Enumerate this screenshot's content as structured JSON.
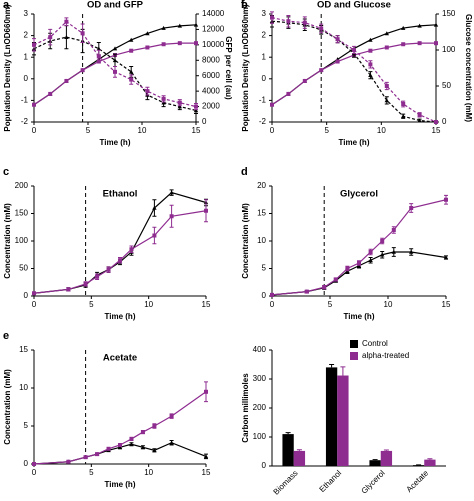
{
  "chart_data": [
    {
      "label": "a",
      "type": "line",
      "title": "OD and GFP",
      "xlabel": "Time (h)",
      "ylabel": "Population Density (LnOD660nm)",
      "y2label": "GFP per cell (au)",
      "x": [
        0,
        1.5,
        3,
        4.5,
        6,
        7.5,
        9,
        10.5,
        12,
        13.5,
        15
      ],
      "xlim": [
        0,
        15
      ],
      "xticks": [
        0,
        5,
        10,
        15
      ],
      "ylim": [
        -2,
        3
      ],
      "yticks": [
        -2,
        -1,
        0,
        1,
        2,
        3
      ],
      "y2lim": [
        0,
        14000
      ],
      "y2ticks": [
        0,
        2000,
        4000,
        6000,
        8000,
        10000,
        12000,
        14000
      ],
      "vline": 4.5,
      "series": [
        {
          "color": "#000000",
          "marker": "triangle",
          "dash": false,
          "values": [
            -1.2,
            -0.7,
            -0.1,
            0.4,
            0.9,
            1.4,
            1.8,
            2.1,
            2.35,
            2.45,
            2.5
          ]
        },
        {
          "color": "#8e2c90",
          "marker": "square",
          "dash": false,
          "values": [
            -1.2,
            -0.7,
            -0.1,
            0.4,
            0.8,
            1.1,
            1.3,
            1.45,
            1.6,
            1.65,
            1.65
          ]
        },
        {
          "color": "#000000",
          "marker": "triangle",
          "dash": true,
          "axis": "y2",
          "values": [
            9500,
            10500,
            11000,
            10500,
            9500,
            8000,
            6500,
            3500,
            2500,
            2000,
            1500
          ],
          "errors": [
            800,
            1000,
            1500,
            1500,
            800,
            800,
            700,
            600,
            500,
            400,
            400
          ]
        },
        {
          "color": "#8e2c90",
          "marker": "square",
          "dash": true,
          "axis": "y2",
          "values": [
            10000,
            11000,
            13000,
            11500,
            8500,
            6500,
            5500,
            4000,
            3000,
            2500,
            2000
          ],
          "errors": [
            800,
            1000,
            500,
            1200,
            800,
            700,
            600,
            500,
            400,
            400,
            400
          ]
        }
      ]
    },
    {
      "label": "b",
      "type": "line",
      "title": "OD and Glucose",
      "xlabel": "Time (h)",
      "ylabel": "Population Density (LnOD660nm)",
      "y2label": "Glucose concentration (mM)",
      "x": [
        0,
        1.5,
        3,
        4.5,
        6,
        7.5,
        9,
        10.5,
        12,
        13.5,
        15
      ],
      "xlim": [
        0,
        15
      ],
      "xticks": [
        0,
        5,
        10,
        15
      ],
      "ylim": [
        -2,
        3
      ],
      "yticks": [
        -2,
        -1,
        0,
        1,
        2,
        3
      ],
      "y2lim": [
        0,
        150
      ],
      "y2ticks": [
        0,
        50,
        100,
        150
      ],
      "vline": 4.5,
      "series": [
        {
          "color": "#000000",
          "marker": "triangle",
          "dash": false,
          "values": [
            -1.2,
            -0.7,
            -0.1,
            0.4,
            0.9,
            1.4,
            1.8,
            2.1,
            2.35,
            2.45,
            2.5
          ]
        },
        {
          "color": "#8e2c90",
          "marker": "square",
          "dash": false,
          "values": [
            -1.2,
            -0.7,
            -0.1,
            0.4,
            0.8,
            1.1,
            1.3,
            1.45,
            1.6,
            1.65,
            1.65
          ]
        },
        {
          "color": "#000000",
          "marker": "triangle",
          "dash": true,
          "axis": "y2",
          "values": [
            140,
            138,
            135,
            128,
            115,
            95,
            65,
            30,
            8,
            2,
            0
          ],
          "errors": [
            8,
            8,
            8,
            6,
            5,
            5,
            5,
            5,
            3,
            2,
            1
          ]
        },
        {
          "color": "#8e2c90",
          "marker": "square",
          "dash": true,
          "axis": "y2",
          "values": [
            145,
            140,
            138,
            130,
            115,
            100,
            80,
            50,
            25,
            10,
            0
          ],
          "errors": [
            8,
            8,
            8,
            6,
            5,
            5,
            5,
            5,
            4,
            3,
            1
          ]
        }
      ]
    },
    {
      "label": "c",
      "type": "line",
      "title": "Ethanol",
      "xlabel": "Time (h)",
      "ylabel": "Concentration (mM)",
      "x": [
        0,
        3,
        4.5,
        5.5,
        6.5,
        7.5,
        8.5,
        10.5,
        12,
        15
      ],
      "xlim": [
        0,
        15
      ],
      "xticks": [
        0,
        5,
        10,
        15
      ],
      "ylim": [
        0,
        200
      ],
      "yticks": [
        0,
        50,
        100,
        150,
        200
      ],
      "vline": 4.5,
      "series": [
        {
          "color": "#000000",
          "marker": "triangle",
          "dash": false,
          "values": [
            5,
            12,
            20,
            38,
            48,
            62,
            80,
            160,
            188,
            170
          ],
          "errors": [
            2,
            3,
            4,
            5,
            5,
            5,
            6,
            15,
            5,
            6
          ]
        },
        {
          "color": "#8e2c90",
          "marker": "square",
          "dash": false,
          "values": [
            5,
            12,
            22,
            35,
            48,
            65,
            85,
            110,
            145,
            155
          ],
          "errors": [
            2,
            3,
            4,
            5,
            5,
            5,
            6,
            15,
            20,
            20
          ]
        }
      ]
    },
    {
      "label": "d",
      "type": "line",
      "title": "Glycerol",
      "xlabel": "Time (h)",
      "ylabel": "Concentration (mM)",
      "x": [
        0,
        3,
        4.5,
        5.5,
        6.5,
        7.5,
        8.5,
        9.5,
        10.5,
        12,
        15
      ],
      "xlim": [
        0,
        15
      ],
      "xticks": [
        0,
        5,
        10,
        15
      ],
      "ylim": [
        0,
        20
      ],
      "yticks": [
        0,
        5,
        10,
        15,
        20
      ],
      "vline": 4.5,
      "series": [
        {
          "color": "#000000",
          "marker": "triangle",
          "dash": false,
          "values": [
            0.2,
            0.8,
            1.5,
            2.8,
            4.5,
            5.5,
            6.5,
            7.5,
            8,
            8,
            7
          ],
          "errors": [
            0.1,
            0.2,
            0.3,
            0.3,
            0.4,
            0.4,
            0.5,
            0.6,
            0.8,
            0.6,
            0.3
          ]
        },
        {
          "color": "#8e2c90",
          "marker": "square",
          "dash": false,
          "values": [
            0.2,
            0.8,
            1.6,
            3,
            5,
            6,
            8,
            10,
            12,
            16,
            17.5
          ],
          "errors": [
            0.1,
            0.2,
            0.3,
            0.3,
            0.4,
            0.4,
            0.5,
            0.5,
            0.6,
            0.8,
            0.8
          ]
        }
      ]
    },
    {
      "label": "e",
      "type": "line",
      "title": "Acetate",
      "xlabel": "Time (h)",
      "ylabel": "Concentration (mM)",
      "x": [
        0,
        3,
        4.5,
        5.5,
        6.5,
        7.5,
        8.5,
        9.5,
        10.5,
        12,
        15
      ],
      "xlim": [
        0,
        15
      ],
      "xticks": [
        0,
        5,
        10,
        15
      ],
      "ylim": [
        0,
        15
      ],
      "yticks": [
        0,
        5,
        10,
        15
      ],
      "vline": 4.5,
      "series": [
        {
          "color": "#000000",
          "marker": "triangle",
          "dash": false,
          "values": [
            0,
            0.3,
            0.9,
            1.3,
            1.8,
            2.2,
            2.6,
            2.2,
            1.8,
            2.8,
            1
          ],
          "errors": [
            0.05,
            0.1,
            0.1,
            0.1,
            0.1,
            0.2,
            0.2,
            0.2,
            0.2,
            0.3,
            0.3
          ]
        },
        {
          "color": "#8e2c90",
          "marker": "square",
          "dash": false,
          "values": [
            0,
            0.3,
            0.9,
            1.3,
            2,
            2.5,
            3.3,
            4.2,
            5,
            6.3,
            9.5
          ],
          "errors": [
            0.05,
            0.1,
            0.1,
            0.1,
            0.1,
            0.2,
            0.2,
            0.2,
            0.3,
            0.3,
            1.3
          ]
        }
      ]
    },
    {
      "label": "f",
      "type": "bar",
      "ylabel": "Carbon millimoles",
      "categories": [
        "Biomass",
        "Ethanol",
        "Glycerol",
        "Acetate"
      ],
      "ylim": [
        0,
        400
      ],
      "yticks": [
        0,
        100,
        200,
        300,
        400
      ],
      "series": [
        {
          "name": "Control",
          "color": "#000000",
          "values": [
            110,
            340,
            20,
            3
          ],
          "errors": [
            5,
            10,
            2,
            1
          ]
        },
        {
          "name": "alpha-treated",
          "color": "#8e2c90",
          "values": [
            52,
            312,
            52,
            22
          ],
          "errors": [
            4,
            30,
            3,
            3
          ]
        }
      ]
    }
  ]
}
